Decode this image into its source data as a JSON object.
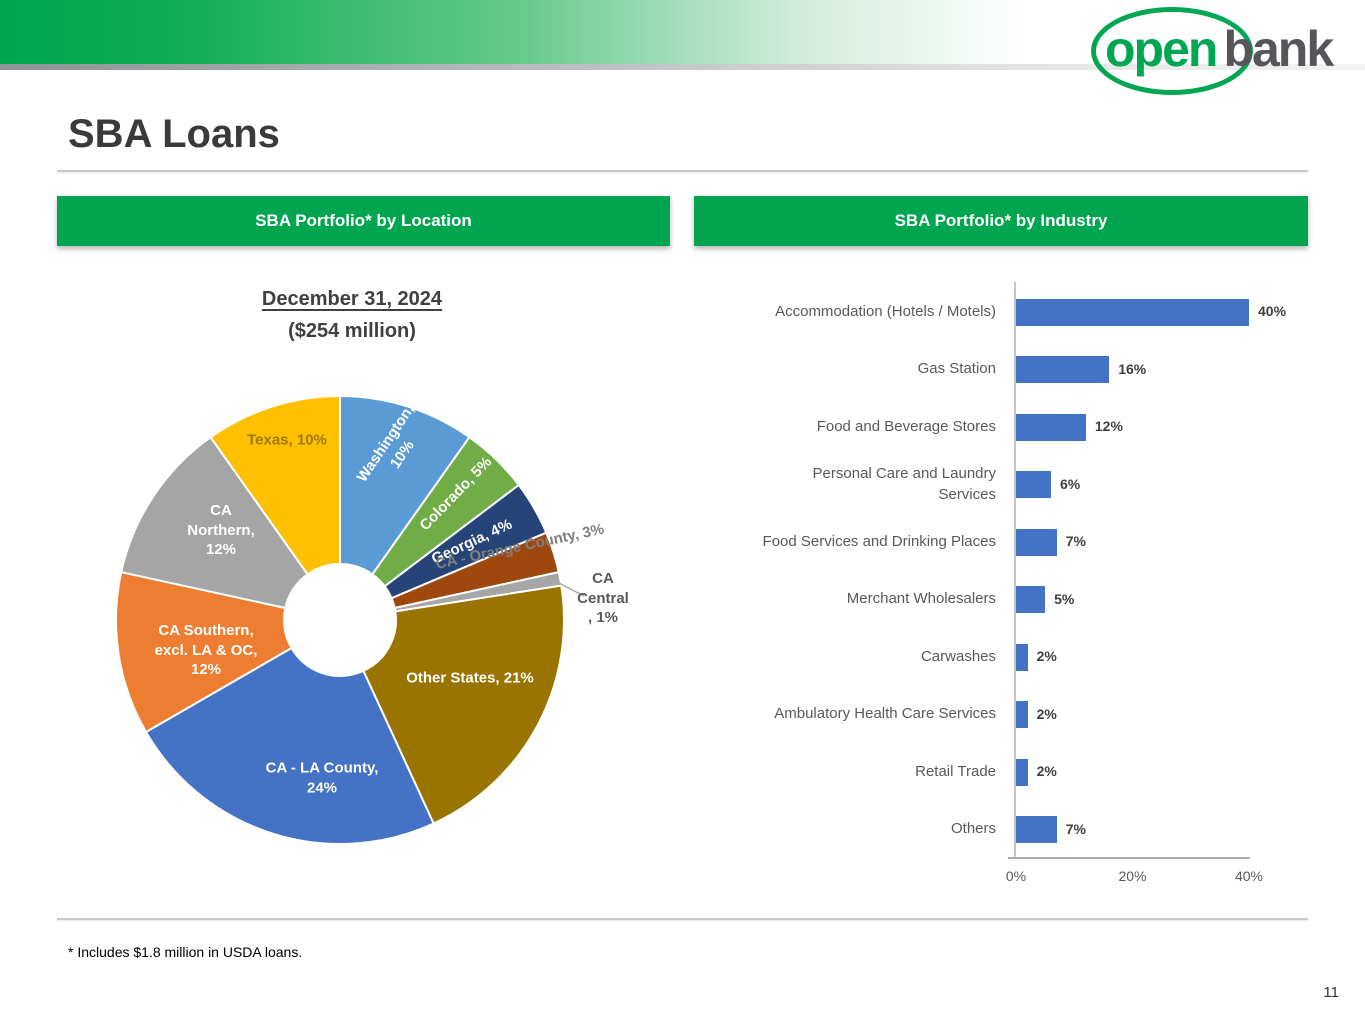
{
  "brand": {
    "logo_open": "open",
    "logo_bank": "bank",
    "accent_green": "#00A651"
  },
  "page": {
    "title": "SBA Loans",
    "footnote": "* Includes $1.8 million in USDA loans.",
    "page_number": "11"
  },
  "panels": {
    "location_header": "SBA Portfolio* by Location",
    "industry_header": "SBA Portfolio* by Industry"
  },
  "chart_data": [
    {
      "type": "pie",
      "donut": true,
      "title": "December 31, 2024",
      "subtitle": "($254 million)",
      "start_angle_deg": -90,
      "direction": "clockwise",
      "slices": [
        {
          "name": "Washington",
          "value": 10,
          "color": "#5B9BD5",
          "label_lines": [
            "Washington,",
            "10%"
          ],
          "label_color": "#FFFFFF"
        },
        {
          "name": "Colorado",
          "value": 5,
          "color": "#70AD47",
          "label_lines": [
            "Colorado, 5%"
          ],
          "label_color": "#FFFFFF"
        },
        {
          "name": "Georgia",
          "value": 4,
          "color": "#264478",
          "label_lines": [
            "Georgia, 4%"
          ],
          "label_color": "#FFFFFF"
        },
        {
          "name": "CA - Orange County",
          "value": 3,
          "color": "#9E480E",
          "label_lines": [
            "CA - Orange County, 3%"
          ],
          "label_color": "#7F7F7F"
        },
        {
          "name": "CA Central",
          "value": 1,
          "color": "#A6A6A6",
          "label_lines": [
            "CA",
            "Central",
            ", 1%"
          ],
          "label_color": "#595959"
        },
        {
          "name": "Other States",
          "value": 21,
          "color": "#9A7400",
          "label_lines": [
            "Other States, 21%"
          ],
          "label_color": "#FFFFFF"
        },
        {
          "name": "CA - LA County",
          "value": 24,
          "color": "#4472C4",
          "label_lines": [
            "CA - LA County,",
            "24%"
          ],
          "label_color": "#FFFFFF"
        },
        {
          "name": "CA Southern, excl. LA & OC",
          "value": 12,
          "color": "#ED7D31",
          "label_lines": [
            "CA Southern,",
            "excl. LA & OC,",
            "12%"
          ],
          "label_color": "#FFFFFF"
        },
        {
          "name": "CA Northern",
          "value": 12,
          "color": "#A5A5A5",
          "label_lines": [
            "CA",
            "Northern,",
            "12%"
          ],
          "label_color": "#FFFFFF"
        },
        {
          "name": "Texas",
          "value": 10,
          "color": "#FFC000",
          "label_lines": [
            "Texas, 10%"
          ],
          "label_color": "#9C7A00"
        }
      ]
    },
    {
      "type": "bar",
      "orientation": "horizontal",
      "bar_color": "#4472C4",
      "categories": [
        "Accommodation (Hotels / Motels)",
        "Gas Station",
        "Food and Beverage Stores",
        "Personal Care and Laundry Services",
        "Food Services and Drinking Places",
        "Merchant Wholesalers",
        "Carwashes",
        "Ambulatory Health Care Services",
        "Retail Trade",
        "Others"
      ],
      "values": [
        40,
        16,
        12,
        6,
        7,
        5,
        2,
        2,
        2,
        7
      ],
      "value_labels": [
        "40%",
        "16%",
        "12%",
        "6%",
        "7%",
        "5%",
        "2%",
        "2%",
        "2%",
        "7%"
      ],
      "xlim": [
        0,
        40
      ],
      "xticks": [
        "0%",
        "20%",
        "40%"
      ],
      "grid": false,
      "legend": false
    }
  ]
}
